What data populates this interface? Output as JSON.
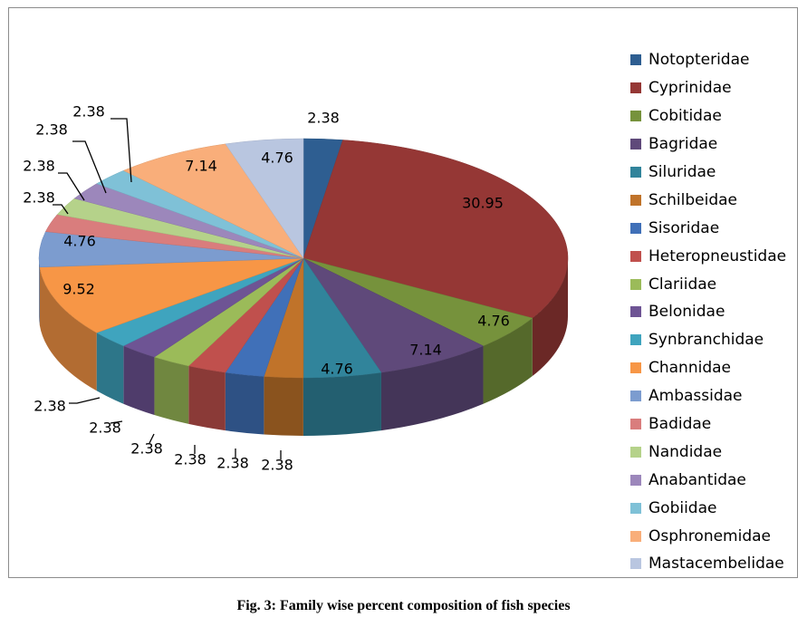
{
  "caption": "Fig. 3: Family wise percent composition of fish species",
  "chart_data": {
    "type": "pie",
    "style": "3d-exploded-none",
    "title": "",
    "legend_position": "right",
    "categories": [
      "Notopteridae",
      "Cyprinidae",
      "Cobitidae",
      "Bagridae",
      "Siluridae",
      "Schilbeidae",
      "Sisoridae",
      "Heteropneustidae",
      "Clariidae",
      "Belonidae",
      "Synbranchidae",
      "Channidae",
      "Ambassidae",
      "Badidae",
      "Nandidae",
      "Anabantidae",
      "Gobiidae",
      "Osphronemidae",
      "Mastacembelidae"
    ],
    "values": [
      2.38,
      30.95,
      4.76,
      7.14,
      4.76,
      2.38,
      2.38,
      2.38,
      2.38,
      2.38,
      2.38,
      9.52,
      4.76,
      2.38,
      2.38,
      2.38,
      2.38,
      7.14,
      4.76
    ],
    "labels": [
      "2.38",
      "30.95",
      "4.76",
      "7.14",
      "4.76",
      "2.38",
      "2.38",
      "2.38",
      "2.38",
      "2.38",
      "2.38",
      "9.52",
      "4.76",
      "2.38",
      "2.38",
      "2.38",
      "2.38",
      "7.14",
      "4.76"
    ],
    "colors": [
      "#2E5E91",
      "#953735",
      "#76923C",
      "#5F497A",
      "#31849B",
      "#C0732A",
      "#4070B8",
      "#C0504D",
      "#9BBB59",
      "#6E5494",
      "#3FA4BE",
      "#F79646",
      "#7C9CCF",
      "#D97D7D",
      "#B5D28A",
      "#9C87BB",
      "#7FC1D7",
      "#F9AE7A",
      "#B9C6E0"
    ]
  }
}
